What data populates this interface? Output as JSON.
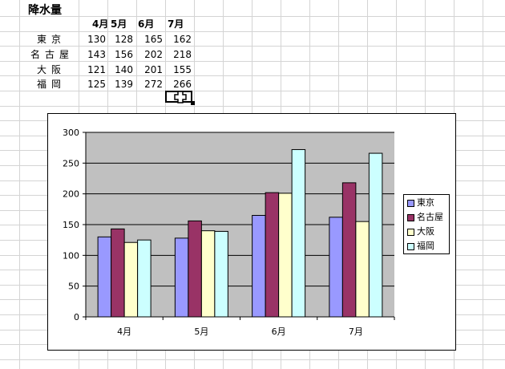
{
  "sheet": {
    "title": "降水量",
    "headers": [
      "4月",
      "5月",
      "6月",
      "7月"
    ],
    "rows": [
      {
        "city": "東京",
        "values": [
          "130",
          "128",
          "165",
          "162"
        ]
      },
      {
        "city": "名古屋",
        "values": [
          "143",
          "156",
          "202",
          "218"
        ]
      },
      {
        "city": "大阪",
        "values": [
          "121",
          "140",
          "201",
          "155"
        ]
      },
      {
        "city": "福岡",
        "values": [
          "125",
          "139",
          "272",
          "266"
        ]
      }
    ]
  },
  "chart_data": {
    "type": "bar",
    "categories": [
      "4月",
      "5月",
      "6月",
      "7月"
    ],
    "series": [
      {
        "name": "東京",
        "values": [
          130,
          128,
          165,
          162
        ],
        "color": "#9999ff"
      },
      {
        "name": "名古屋",
        "values": [
          143,
          156,
          202,
          218
        ],
        "color": "#993366"
      },
      {
        "name": "大阪",
        "values": [
          121,
          140,
          201,
          155
        ],
        "color": "#ffffcc"
      },
      {
        "name": "福岡",
        "values": [
          125,
          139,
          272,
          266
        ],
        "color": "#ccffff"
      }
    ],
    "ylim": [
      0,
      300
    ],
    "yticks": [
      "0",
      "50",
      "100",
      "150",
      "200",
      "250",
      "300"
    ],
    "plot_background": "#c0c0c0",
    "grid": true,
    "legend": "right"
  },
  "icons": {
    "cursor": "plus-cursor-icon"
  }
}
